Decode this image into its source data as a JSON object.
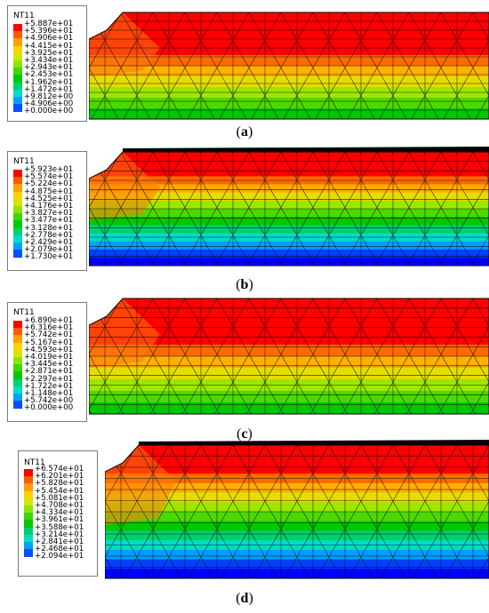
{
  "panels": [
    {
      "caption_open": "(",
      "caption_letter": "a",
      "caption_close": ")",
      "legend_title": "NT11",
      "legend_labels": [
        "+5.887e+01",
        "+5.396e+01",
        "+4.906e+01",
        "+4.415e+01",
        "+3.925e+01",
        "+3.434e+01",
        "+2.943e+01",
        "+2.453e+01",
        "+1.962e+01",
        "+1.472e+01",
        "+9.812e+00",
        "+4.906e+00",
        "+0.000e+00"
      ],
      "band_colors": [
        "#ff0000",
        "#ff0000",
        "#ff0000",
        "#ff0000",
        "#ff6a00",
        "#ffb000",
        "#e6dc00",
        "#9ee600",
        "#4cd900",
        "#00c800"
      ],
      "black_edge": false
    },
    {
      "caption_open": "(",
      "caption_letter": "b",
      "caption_close": ")",
      "legend_title": "NT11",
      "legend_labels": [
        "+5.923e+01",
        "+5.574e+01",
        "+5.224e+01",
        "+4.875e+01",
        "+4.525e+01",
        "+4.176e+01",
        "+3.827e+01",
        "+3.477e+01",
        "+3.128e+01",
        "+2.778e+01",
        "+2.429e+01",
        "+2.079e+01",
        "+1.730e+01"
      ],
      "band_colors": [
        "#ff0000",
        "#ff0000",
        "#ff0000",
        "#ff6a00",
        "#ffb000",
        "#e6dc00",
        "#9ee600",
        "#4cd900",
        "#00c800",
        "#00d070",
        "#00dcc8",
        "#00a0ff",
        "#0040ff",
        "#0000ff"
      ],
      "black_edge": true
    },
    {
      "caption_open": "(",
      "caption_letter": "c",
      "caption_close": ")",
      "legend_title": "NT11",
      "legend_labels": [
        "+6.890e+01",
        "+6.316e+01",
        "+5.742e+01",
        "+5.167e+01",
        "+4.593e+01",
        "+4.019e+01",
        "+3.445e+01",
        "+2.871e+01",
        "+2.297e+01",
        "+1.722e+01",
        "+1.148e+01",
        "+5.742e+00",
        "+0.000e+00"
      ],
      "band_colors": [
        "#ff0000",
        "#ff0000",
        "#ff0000",
        "#ff0000",
        "#ff6a00",
        "#ffb000",
        "#e6dc00",
        "#9ee600",
        "#4cd900",
        "#00c800"
      ],
      "black_edge": false
    },
    {
      "caption_open": "(",
      "caption_letter": "d",
      "caption_close": ")",
      "legend_title": "NT11",
      "legend_labels": [
        "+6.574e+01",
        "+6.201e+01",
        "+5.828e+01",
        "+5.454e+01",
        "+5.081e+01",
        "+4.708e+01",
        "+4.334e+01",
        "+3.961e+01",
        "+3.588e+01",
        "+3.214e+01",
        "+2.841e+01",
        "+2.468e+01",
        "+2.094e+01"
      ],
      "band_colors": [
        "#ff0000",
        "#ff0000",
        "#ff0000",
        "#ff6a00",
        "#ffb000",
        "#e6dc00",
        "#9ee600",
        "#4cd900",
        "#00c800",
        "#00d070",
        "#00dcc8",
        "#00a0ff",
        "#0040ff",
        "#0000ff"
      ],
      "black_edge": true
    }
  ],
  "scale_colors": [
    "#ff0000",
    "#ff5a00",
    "#ffa000",
    "#ffd200",
    "#d4e600",
    "#8ee600",
    "#3cd800",
    "#00c800",
    "#00d070",
    "#00dcc8",
    "#00a0ff",
    "#0050ff",
    "#0000ff"
  ],
  "mesh_line_color": "#000000"
}
